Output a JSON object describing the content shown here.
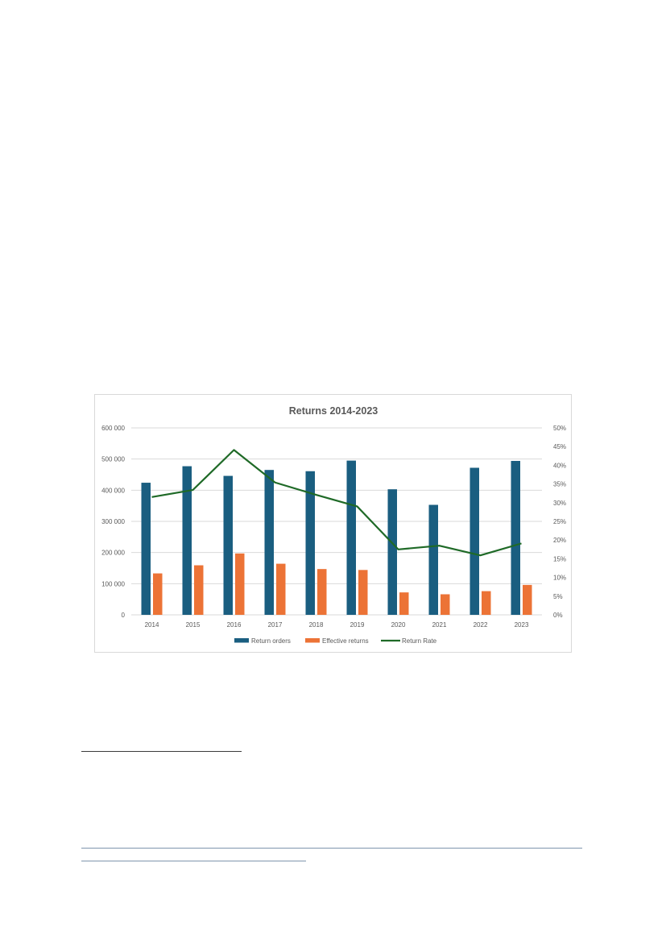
{
  "chart_data": {
    "type": "bar",
    "title": "Returns 2014-2023",
    "categories": [
      "2014",
      "2015",
      "2016",
      "2017",
      "2018",
      "2019",
      "2020",
      "2021",
      "2022",
      "2023"
    ],
    "series": [
      {
        "name": "Return orders",
        "type": "bar",
        "axis": "left",
        "color": "#1a5e80",
        "values": [
          424000,
          477000,
          446000,
          465000,
          461000,
          495000,
          403000,
          353000,
          472000,
          494000
        ]
      },
      {
        "name": "Effective returns",
        "type": "bar",
        "axis": "left",
        "color": "#ec7336",
        "values": [
          133000,
          159000,
          197000,
          164000,
          147000,
          144000,
          72000,
          66000,
          76000,
          96000
        ]
      },
      {
        "name": "Return Rate",
        "type": "line",
        "axis": "right",
        "color": "#1f6a27",
        "values": [
          0.315,
          0.334,
          0.441,
          0.354,
          0.321,
          0.29,
          0.175,
          0.185,
          0.159,
          0.191
        ]
      }
    ],
    "left_axis": {
      "ylim": [
        0,
        600000
      ],
      "ticks": [
        "0",
        "100 000",
        "200 000",
        "300 000",
        "400 000",
        "500 000",
        "600 000"
      ]
    },
    "right_axis": {
      "ylim": [
        0,
        0.5
      ],
      "ticks": [
        "0%",
        "5%",
        "10%",
        "15%",
        "20%",
        "25%",
        "30%",
        "35%",
        "40%",
        "45%",
        "50%"
      ]
    },
    "grid": true,
    "legend": "bottom"
  }
}
